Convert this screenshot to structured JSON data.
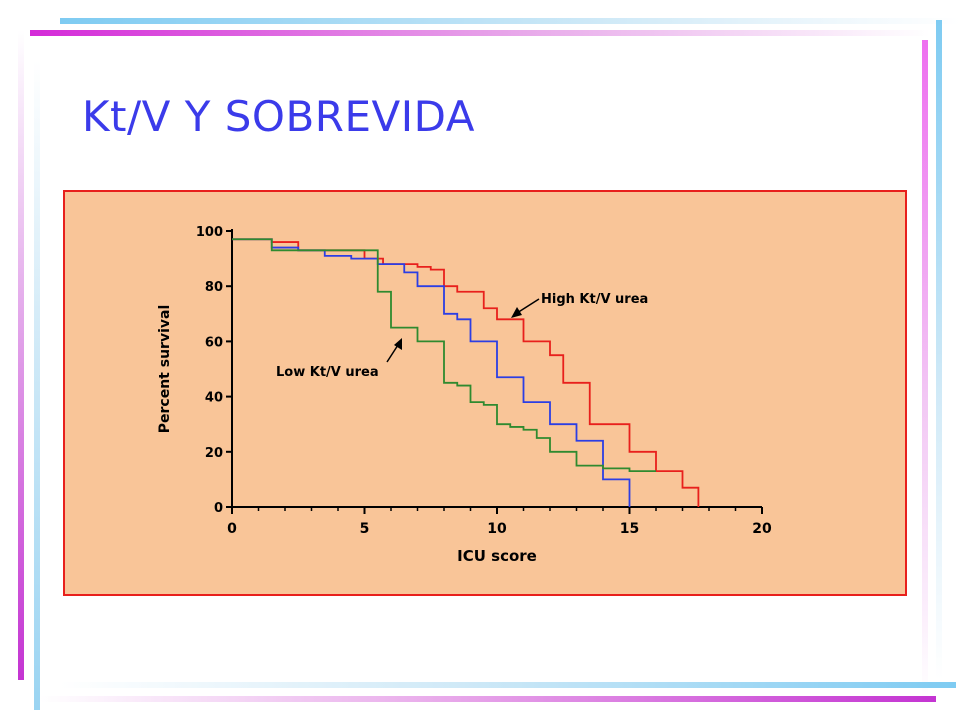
{
  "slide": {
    "title": "Kt/V Y SOBREVIDA"
  },
  "colors": {
    "panel": "#f9c598",
    "border": "#e8201c",
    "high": "#e8201c",
    "blue": "#2c3ee4",
    "low": "#2f8a2f",
    "title": "#3b3bea"
  },
  "chart_data": {
    "type": "line",
    "title": "",
    "xlabel": "ICU score",
    "ylabel": "Percent survival",
    "xlim": [
      0,
      20
    ],
    "ylim": [
      0,
      100
    ],
    "x_ticks": [
      "0",
      "5",
      "10",
      "15",
      "20"
    ],
    "y_ticks": [
      "0",
      "20",
      "40",
      "60",
      "80",
      "100"
    ],
    "annotations": [
      {
        "text": "High Kt/V urea",
        "series": 0
      },
      {
        "text": "Low Kt/V urea",
        "series": 2
      }
    ],
    "series": [
      {
        "name": "High Kt/V urea",
        "color": "#e8201c",
        "step": true,
        "x": [
          0,
          1.5,
          2.5,
          5.0,
          5.7,
          6.0,
          7.0,
          7.5,
          8.0,
          8.5,
          9.5,
          10.0,
          10.5,
          11.0,
          12.0,
          12.5,
          13.0,
          13.5,
          14.0,
          15.0,
          16.0,
          17.0,
          17.6
        ],
        "y": [
          97,
          96,
          93,
          90,
          88,
          88,
          87,
          86,
          80,
          78,
          72,
          68,
          68,
          60,
          55,
          45,
          45,
          30,
          30,
          20,
          13,
          7,
          0
        ]
      },
      {
        "name": "",
        "color": "#2c3ee4",
        "step": true,
        "x": [
          0,
          1.5,
          2.5,
          3.5,
          4.5,
          5.5,
          6.5,
          7.0,
          8.0,
          8.5,
          9.0,
          10.0,
          10.5,
          11.0,
          12.0,
          12.5,
          13.0,
          14.0,
          15.0
        ],
        "y": [
          97,
          94,
          93,
          91,
          90,
          88,
          85,
          80,
          70,
          68,
          60,
          47,
          47,
          38,
          30,
          30,
          24,
          10,
          0
        ]
      },
      {
        "name": "Low Kt/V urea",
        "color": "#2f8a2f",
        "step": true,
        "x": [
          0,
          1.5,
          2.5,
          5.0,
          5.5,
          6.0,
          7.0,
          8.0,
          8.5,
          9.0,
          9.5,
          10.0,
          10.5,
          11.0,
          11.5,
          12.0,
          13.0,
          14.0,
          15.0,
          16.0
        ],
        "y": [
          97,
          93,
          93,
          93,
          78,
          65,
          60,
          45,
          44,
          38,
          37,
          30,
          29,
          28,
          25,
          20,
          15,
          14,
          13,
          13
        ]
      }
    ]
  }
}
